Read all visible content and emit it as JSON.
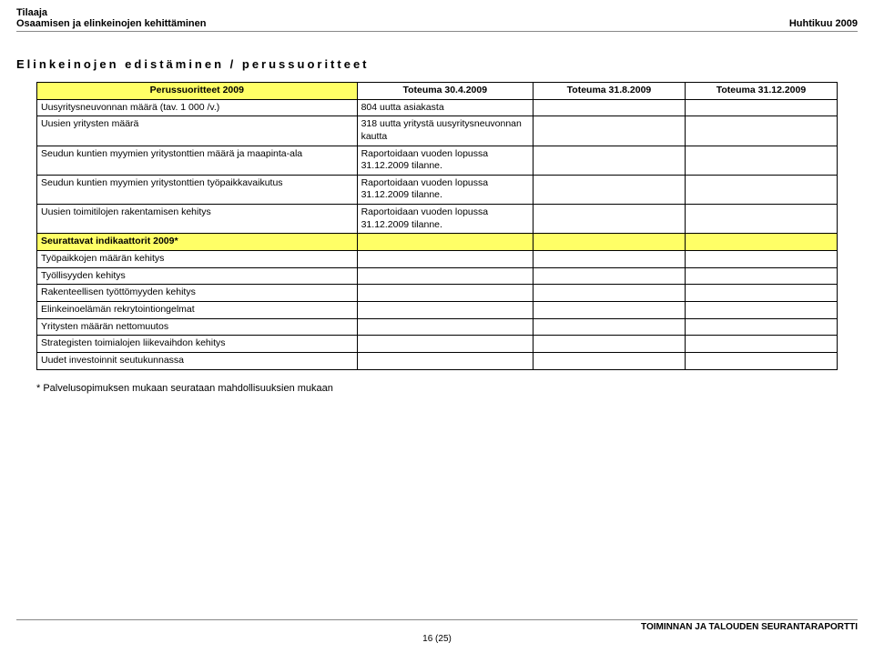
{
  "header": {
    "line1": "Tilaaja",
    "line2_left": "Osaamisen ja elinkeinojen kehittäminen",
    "line2_right": "Huhtikuu 2009"
  },
  "section_title": "Elinkeinojen edistäminen / perussuoritteet",
  "table": {
    "head": {
      "col1": "Perussuoritteet 2009",
      "col2": "Toteuma 30.4.2009",
      "col3": "Toteuma 31.8.2009",
      "col4": "Toteuma 31.12.2009"
    },
    "rows": [
      {
        "label": "Uusyritysneuvonnan määrä (tav. 1 000 /v.)",
        "c2": "804 uutta asiakasta",
        "c3": "",
        "c4": ""
      },
      {
        "label": "Uusien yritysten määrä",
        "c2": " 318 uutta yritystä uusyritysneuvonnan kautta",
        "c3": "",
        "c4": ""
      },
      {
        "label": "Seudun kuntien myymien yritystonttien määrä ja maapinta-ala",
        "c2": "Raportoidaan vuoden lopussa 31.12.2009 tilanne.",
        "c3": "",
        "c4": ""
      },
      {
        "label": "Seudun kuntien myymien yritystonttien työpaikkavaikutus",
        "c2": "Raportoidaan vuoden lopussa 31.12.2009 tilanne.",
        "c3": "",
        "c4": ""
      },
      {
        "label": "Uusien toimitilojen rakentamisen kehitys",
        "c2": "Raportoidaan vuoden lopussa 31.12.2009 tilanne.",
        "c3": "",
        "c4": ""
      }
    ],
    "section2_header": "Seurattavat indikaattorit 2009*",
    "rows2": [
      {
        "label": "Työpaikkojen määrän kehitys"
      },
      {
        "label": "Työllisyyden kehitys"
      },
      {
        "label": "Rakenteellisen työttömyyden kehitys"
      },
      {
        "label": "Elinkeinoelämän rekrytointiongelmat"
      },
      {
        "label": "Yritysten määrän nettomuutos"
      },
      {
        "label": "Strategisten toimialojen liikevaihdon kehitys"
      },
      {
        "label": "Uudet investoinnit seutukunnassa"
      }
    ]
  },
  "footnote": "* Palvelusopimuksen mukaan seurataan mahdollisuuksien mukaan",
  "footer": {
    "text": "TOIMINNAN JA TALOUDEN SEURANTARAPORTTI",
    "page": "16 (25)"
  },
  "colors": {
    "highlight": "#ffff66",
    "border": "#000000",
    "divider": "#888888",
    "background": "#ffffff"
  }
}
